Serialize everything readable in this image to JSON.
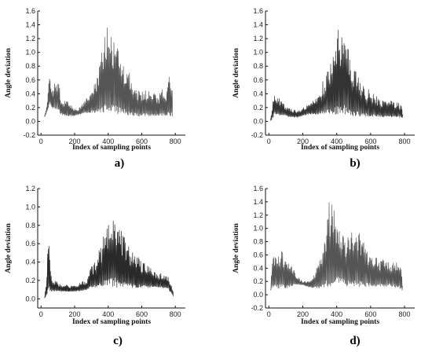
{
  "chart_data": [
    {
      "type": "line",
      "label": "a)",
      "xlabel": "Index of sampling points",
      "ylabel": "Angle deviation",
      "xlim": [
        -20,
        860
      ],
      "ylim": [
        -0.2,
        1.6
      ],
      "xticks": [
        "0",
        "200",
        "400",
        "600",
        "800"
      ],
      "yticks": [
        "-0.2",
        "0.0",
        "0.2",
        "0.4",
        "0.6",
        "0.8",
        "1.0",
        "1.2",
        "1.4",
        "1.6"
      ],
      "color": "#555555",
      "envelope": {
        "x": [
          20,
          30,
          38,
          45,
          55,
          60,
          70,
          80,
          95,
          110,
          120,
          140,
          170,
          200,
          230,
          260,
          280,
          300,
          320,
          340,
          360,
          380,
          390,
          400,
          410,
          420,
          440,
          460,
          480,
          500,
          520,
          540,
          560,
          580,
          600,
          620,
          640,
          660,
          680,
          700,
          720,
          740,
          760,
          770,
          780,
          785
        ],
        "y": [
          0.1,
          0.2,
          0.3,
          0.64,
          0.6,
          0.45,
          0.45,
          0.55,
          0.58,
          0.52,
          0.35,
          0.3,
          0.28,
          0.18,
          0.2,
          0.3,
          0.35,
          0.45,
          0.55,
          0.7,
          1.0,
          1.25,
          1.4,
          1.38,
          1.3,
          1.2,
          1.15,
          1.05,
          0.95,
          0.85,
          0.75,
          0.6,
          0.52,
          0.45,
          0.42,
          0.5,
          0.45,
          0.4,
          0.46,
          0.38,
          0.48,
          0.42,
          0.6,
          0.76,
          0.7,
          0.3
        ],
        "baseline": [
          0.05,
          0.1,
          0.15,
          0.2,
          0.25,
          0.2,
          0.18,
          0.2,
          0.15,
          0.12,
          0.1,
          0.08,
          0.07,
          0.08,
          0.1,
          0.12,
          0.12,
          0.12,
          0.12,
          0.13,
          0.13,
          0.13,
          0.13,
          0.13,
          0.13,
          0.12,
          0.12,
          0.1,
          0.1,
          0.1,
          0.08,
          0.08,
          0.08,
          0.07,
          0.07,
          0.08,
          0.08,
          0.07,
          0.08,
          0.08,
          0.08,
          0.08,
          0.08,
          0.08,
          0.05,
          0.05
        ]
      }
    },
    {
      "type": "line",
      "label": "b)",
      "xlabel": "Index of sampling points",
      "ylabel": "Angle deviation",
      "xlim": [
        -20,
        860
      ],
      "ylim": [
        -0.2,
        1.6
      ],
      "xticks": [
        "0",
        "200",
        "400",
        "600",
        "800"
      ],
      "yticks": [
        "-0.2",
        "0.0",
        "0.2",
        "0.4",
        "0.6",
        "0.8",
        "1.0",
        "1.2",
        "1.4",
        "1.6"
      ],
      "color": "#333333",
      "envelope": {
        "x": [
          10,
          25,
          35,
          50,
          70,
          90,
          110,
          140,
          170,
          200,
          230,
          260,
          290,
          320,
          350,
          380,
          400,
          410,
          420,
          440,
          460,
          480,
          500,
          520,
          540,
          560,
          600,
          640,
          680,
          720,
          760,
          780,
          790
        ],
        "y": [
          0.05,
          0.35,
          0.42,
          0.38,
          0.3,
          0.25,
          0.2,
          0.18,
          0.15,
          0.2,
          0.25,
          0.3,
          0.45,
          0.6,
          0.75,
          0.95,
          1.15,
          1.47,
          1.25,
          1.4,
          1.2,
          0.9,
          0.8,
          0.7,
          0.6,
          0.5,
          0.45,
          0.35,
          0.3,
          0.3,
          0.28,
          0.25,
          0.1
        ],
        "baseline": [
          0.0,
          0.05,
          0.1,
          0.1,
          0.08,
          0.08,
          0.07,
          0.06,
          0.06,
          0.08,
          0.1,
          0.1,
          0.1,
          0.1,
          0.1,
          0.1,
          0.1,
          0.1,
          0.1,
          0.1,
          0.1,
          0.08,
          0.08,
          0.08,
          0.07,
          0.07,
          0.07,
          0.07,
          0.06,
          0.06,
          0.06,
          0.06,
          0.05
        ]
      }
    },
    {
      "type": "line",
      "label": "c)",
      "xlabel": "Index of sampling points",
      "ylabel": "Angle deviation",
      "xlim": [
        -20,
        860
      ],
      "ylim": [
        -0.1,
        1.2
      ],
      "xticks": [
        "0",
        "200",
        "400",
        "600",
        "800"
      ],
      "yticks": [
        "0.0",
        "0.2",
        "0.4",
        "0.6",
        "0.8",
        "1.0",
        "1.2"
      ],
      "color": "#2a2a2a",
      "envelope": {
        "x": [
          20,
          30,
          40,
          50,
          60,
          80,
          100,
          120,
          150,
          180,
          210,
          240,
          270,
          300,
          330,
          360,
          380,
          400,
          420,
          440,
          460,
          480,
          500,
          530,
          560,
          600,
          640,
          680,
          720,
          760,
          780,
          790
        ],
        "y": [
          0.02,
          0.2,
          0.55,
          0.6,
          0.3,
          0.2,
          0.18,
          0.15,
          0.15,
          0.14,
          0.16,
          0.2,
          0.2,
          0.35,
          0.45,
          0.6,
          0.75,
          0.9,
          1.0,
          1.02,
          0.85,
          0.75,
          0.65,
          0.55,
          0.5,
          0.42,
          0.35,
          0.3,
          0.28,
          0.25,
          0.15,
          0.05
        ],
        "baseline": [
          0.0,
          0.03,
          0.06,
          0.08,
          0.08,
          0.08,
          0.08,
          0.08,
          0.08,
          0.08,
          0.08,
          0.08,
          0.1,
          0.12,
          0.12,
          0.13,
          0.13,
          0.13,
          0.13,
          0.13,
          0.12,
          0.12,
          0.12,
          0.12,
          0.12,
          0.12,
          0.12,
          0.12,
          0.12,
          0.1,
          0.05,
          0.02
        ]
      }
    },
    {
      "type": "line",
      "label": "d)",
      "xlabel": "Index of sampling points",
      "ylabel": "Angle deviation",
      "xlim": [
        -20,
        860
      ],
      "ylim": [
        -0.2,
        1.6
      ],
      "xticks": [
        "0",
        "200",
        "400",
        "600",
        "800"
      ],
      "yticks": [
        "-0.2",
        "0.0",
        "0.2",
        "0.4",
        "0.6",
        "0.8",
        "1.0",
        "1.2",
        "1.4",
        "1.6"
      ],
      "color": "#555555",
      "envelope": {
        "x": [
          10,
          20,
          35,
          50,
          70,
          90,
          110,
          130,
          160,
          200,
          230,
          260,
          290,
          320,
          350,
          360,
          380,
          400,
          420,
          440,
          460,
          500,
          540,
          560,
          600,
          640,
          680,
          720,
          760,
          780,
          790
        ],
        "y": [
          0.1,
          0.68,
          0.66,
          0.6,
          0.72,
          0.6,
          0.55,
          0.5,
          0.3,
          0.2,
          0.2,
          0.25,
          0.5,
          0.7,
          1.3,
          1.5,
          1.3,
          1.2,
          1.1,
          0.95,
          0.9,
          1.05,
          0.95,
          0.8,
          0.6,
          0.55,
          0.55,
          0.5,
          0.58,
          0.5,
          0.08
        ],
        "baseline": [
          0.05,
          0.1,
          0.12,
          0.1,
          0.1,
          0.1,
          0.1,
          0.12,
          0.15,
          0.15,
          0.12,
          0.1,
          0.1,
          0.1,
          0.1,
          0.1,
          0.12,
          0.15,
          0.15,
          0.15,
          0.12,
          0.12,
          0.12,
          0.12,
          0.12,
          0.12,
          0.12,
          0.12,
          0.1,
          0.08,
          0.05
        ]
      }
    }
  ]
}
